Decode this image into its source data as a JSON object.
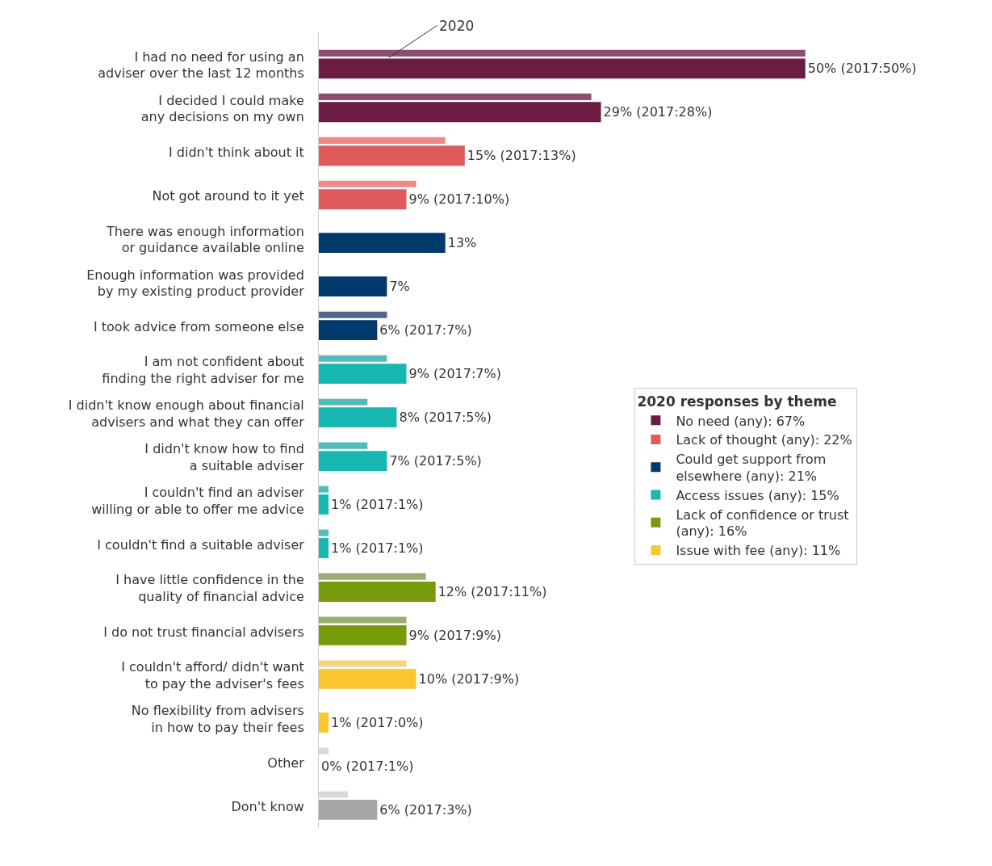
{
  "chart_data": {
    "type": "bar",
    "orientation": "horizontal",
    "legend": "right",
    "legend_title": "2020 responses by theme",
    "tick_labels": "y",
    "categories": [
      "I had no need for using an\nadviser over the last 12 months",
      "I decided I could make\nany decisions on my own",
      "I didn't think about it",
      "Not got around to it yet",
      "There was enough information\nor guidance available online",
      "Enough information was provided\nby my existing product provider",
      "I took advice from someone else",
      "I am not confident about\nfinding the right adviser for me",
      "I didn't know enough about financial\nadvisers and what they can offer",
      "I didn't know how to find\na suitable adviser",
      "I couldn't find an adviser\nwilling or able to offer me advice",
      "I couldn't find a suitable adviser",
      "I have little confidence in the\nquality of financial advice",
      "I do not trust financial advisers",
      "I couldn't afford/ didn't want\nto pay the adviser's fees",
      "No flexibility from advisers\nin how to pay their fees",
      "Other",
      "Don't know"
    ],
    "annotations": [
      "2020"
    ],
    "series": [
      {
        "colors": [
          "#8c4f72",
          "#8c4f72",
          "#ee8a88",
          "#ee8a88",
          null,
          null,
          "#4d6689",
          "#55bdb9",
          "#55bdb9",
          "#55bdb9",
          "#55bdb9",
          "#55bdb9",
          "#9aac70",
          "#9aac70",
          "#f7d27f",
          null,
          "#d9d9d9",
          "#d9d9d9"
        ],
        "values": [
          50,
          28,
          13,
          10,
          null,
          null,
          7,
          7,
          5,
          5,
          1,
          1,
          11,
          9,
          9,
          0,
          1,
          3
        ]
      },
      {
        "name": "No need (any): 67%",
        "color": "#6b1c43",
        "values": [
          50,
          29,
          null,
          null,
          null,
          null,
          null,
          null,
          null,
          null,
          null,
          null,
          null,
          null,
          null,
          null,
          null,
          null
        ],
        "value_labels": [
          "50% (2017:50%)",
          "29% (2017:28%)",
          null,
          null,
          null,
          null,
          null,
          null,
          null,
          null,
          null,
          null,
          null,
          null,
          null,
          null,
          null,
          null
        ]
      },
      {
        "name": "Lack of thought (any): 22%",
        "color": "#e05a5c",
        "values": [
          null,
          null,
          15,
          9,
          null,
          null,
          null,
          null,
          null,
          null,
          null,
          null,
          null,
          null,
          null,
          null,
          null,
          null
        ],
        "value_labels": [
          null,
          null,
          "15% (2017:13%)",
          "9% (2017:10%)",
          null,
          null,
          null,
          null,
          null,
          null,
          null,
          null,
          null,
          null,
          null,
          null,
          null,
          null
        ]
      },
      {
        "name": "Could get support from\nelsewhere (any): 21%",
        "color": "#003a6c",
        "values": [
          null,
          null,
          null,
          null,
          13,
          7,
          6,
          null,
          null,
          null,
          null,
          null,
          null,
          null,
          null,
          null,
          null,
          null
        ],
        "value_labels": [
          null,
          null,
          null,
          null,
          "13%",
          "7%",
          "6% (2017:7%)",
          null,
          null,
          null,
          null,
          null,
          null,
          null,
          null,
          null,
          null,
          null
        ]
      },
      {
        "name": "Access issues (any): 15%",
        "color": "#18b8b2",
        "values": [
          null,
          null,
          null,
          null,
          null,
          null,
          null,
          9,
          8,
          7,
          1,
          1,
          null,
          null,
          null,
          null,
          null,
          null
        ],
        "value_labels": [
          null,
          null,
          null,
          null,
          null,
          null,
          null,
          "9% (2017:7%)",
          "8% (2017:5%)",
          "7% (2017:5%)",
          "1% (2017:1%)",
          "1% (2017:1%)",
          null,
          null,
          null,
          null,
          null,
          null
        ]
      },
      {
        "name": "Lack of confidence or trust\n(any): 16%",
        "color": "#759a0a",
        "values": [
          null,
          null,
          null,
          null,
          null,
          null,
          null,
          null,
          null,
          null,
          null,
          null,
          12,
          9,
          null,
          null,
          null,
          null
        ],
        "value_labels": [
          null,
          null,
          null,
          null,
          null,
          null,
          null,
          null,
          null,
          null,
          null,
          null,
          "12% (2017:11%)",
          "9% (2017:9%)",
          null,
          null,
          null,
          null
        ]
      },
      {
        "name": "Issue with fee (any): 11%",
        "color": "#fcc62f",
        "values": [
          null,
          null,
          null,
          null,
          null,
          null,
          null,
          null,
          null,
          null,
          null,
          null,
          null,
          null,
          10,
          1,
          null,
          null
        ],
        "value_labels": [
          null,
          null,
          null,
          null,
          null,
          null,
          null,
          null,
          null,
          null,
          null,
          null,
          null,
          null,
          "10% (2017:9%)",
          "1% (2017:0%)",
          null,
          null
        ]
      },
      {
        "color": "#a6a6a6",
        "values": [
          null,
          null,
          null,
          null,
          null,
          null,
          null,
          null,
          null,
          null,
          null,
          null,
          null,
          null,
          null,
          null,
          0,
          6
        ],
        "value_labels": [
          null,
          null,
          null,
          null,
          null,
          null,
          null,
          null,
          null,
          null,
          null,
          null,
          null,
          null,
          null,
          null,
          "0% (2017:1%)",
          "6% (2017:3%)"
        ]
      }
    ]
  }
}
